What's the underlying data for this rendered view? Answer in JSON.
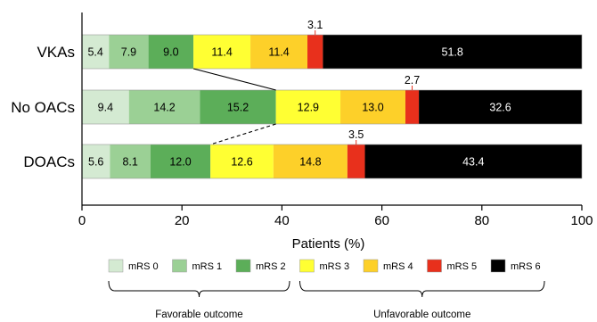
{
  "chart_data": {
    "type": "bar",
    "orientation": "horizontal",
    "stacked": true,
    "categories": [
      "VKAs",
      "No OACs",
      "DOACs"
    ],
    "series": [
      {
        "name": "mRS 0",
        "color": "#d4ead2",
        "label_color": "#000000",
        "values": [
          5.4,
          9.4,
          5.6
        ]
      },
      {
        "name": "mRS 1",
        "color": "#9bd095",
        "label_color": "#000000",
        "values": [
          7.9,
          14.2,
          8.1
        ]
      },
      {
        "name": "mRS 2",
        "color": "#5cae59",
        "label_color": "#000000",
        "values": [
          9.0,
          15.2,
          12.0
        ]
      },
      {
        "name": "mRS 3",
        "color": "#ffff33",
        "label_color": "#000000",
        "values": [
          11.4,
          12.9,
          12.6
        ]
      },
      {
        "name": "mRS 4",
        "color": "#fdd029",
        "label_color": "#000000",
        "values": [
          11.4,
          13.0,
          14.8
        ]
      },
      {
        "name": "mRS 5",
        "color": "#e8301c",
        "label_color": "#000000",
        "values": [
          3.1,
          2.7,
          3.5
        ]
      },
      {
        "name": "mRS 6",
        "color": "#000000",
        "label_color": "#ffffff",
        "values": [
          51.8,
          32.6,
          43.4
        ]
      }
    ],
    "labels_above": [
      {
        "category": "VKAs",
        "series": "mRS 5",
        "text": "3.1"
      },
      {
        "category": "No OACs",
        "series": "mRS 5",
        "text": "2.7"
      },
      {
        "category": "DOACs",
        "series": "mRS 5",
        "text": "3.5"
      }
    ],
    "connectors": [
      {
        "from": "VKAs",
        "to": "No OACs",
        "boundary_after_series": 2,
        "style": "solid"
      },
      {
        "from": "No OACs",
        "to": "DOACs",
        "boundary_after_series": 2,
        "style": "dashed"
      }
    ],
    "xlabel": "Patients (%)",
    "xlim": [
      0,
      100
    ],
    "xticks": [
      0,
      20,
      40,
      60,
      80,
      100
    ],
    "grid": false,
    "legend": {
      "position": "bottom",
      "groups": [
        {
          "label": "Favorable outcome",
          "series": [
            "mRS 0",
            "mRS 1",
            "mRS 2"
          ]
        },
        {
          "label": "Unfavorable outcome",
          "series": [
            "mRS 3",
            "mRS 4",
            "mRS 5",
            "mRS 6"
          ]
        }
      ]
    }
  }
}
